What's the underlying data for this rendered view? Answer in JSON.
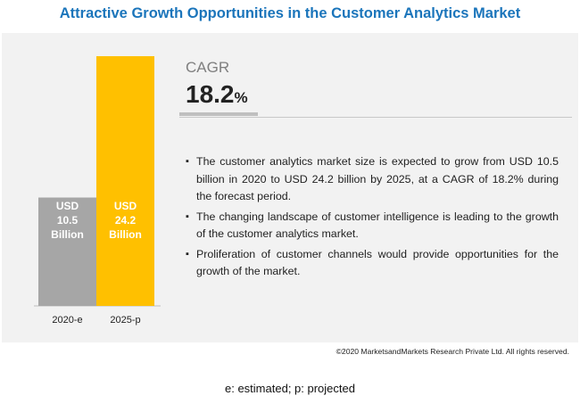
{
  "title": "Attractive Growth Opportunities in the Customer Analytics Market",
  "cagr": {
    "label": "CAGR",
    "value": "18.2",
    "unit": "%"
  },
  "bullets": [
    "The customer analytics market size is expected to grow from USD 10.5 billion in 2020 to USD 24.2 billion by 2025, at a CAGR of 18.2% during the forecast period.",
    "The changing landscape of customer intelligence is leading to the growth of the customer analytics market.",
    "Proliferation of customer channels would provide opportunities for the growth of the market."
  ],
  "copyright": "©2020 MarketsandMarkets Research Private Ltd. All rights reserved.",
  "footnote": "e: estimated; p: projected",
  "chart_data": {
    "type": "bar",
    "categories": [
      "2020-e",
      "2025-p"
    ],
    "values": [
      10.5,
      24.2
    ],
    "bar_labels": [
      [
        "USD",
        "10.5",
        "Billion"
      ],
      [
        "USD",
        "24.2",
        "Billion"
      ]
    ],
    "colors": [
      "#a6a6a6",
      "#ffc000"
    ],
    "ylim": [
      0,
      24.2
    ]
  }
}
